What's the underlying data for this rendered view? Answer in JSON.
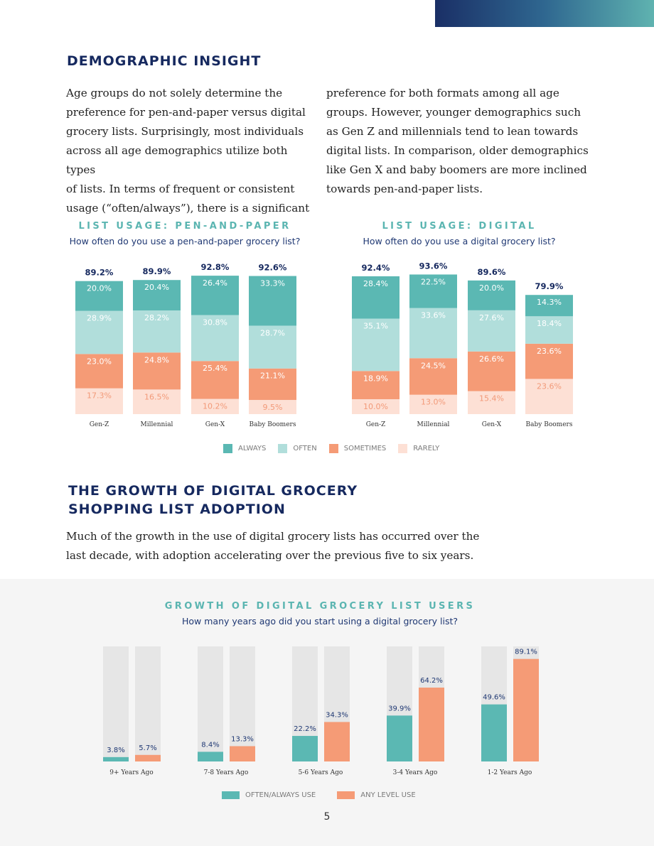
{
  "section1": {
    "title": "DEMOGRAPHIC INSIGHT",
    "col1": [
      "Age groups do not solely determine the",
      "preference for pen-and-paper versus digital",
      "grocery lists. Surprisingly, most individuals",
      "across all age demographics utilize both types",
      "of lists. In terms of frequent or consistent",
      "usage (“often/always”), there is a significant"
    ],
    "col2": [
      "preference for both formats among all age",
      "groups. However, younger demographics such",
      "as Gen Z and millennials tend to lean towards",
      "digital lists. In comparison, older demographics",
      "like Gen X and baby boomers are more inclined",
      "towards pen-and-paper lists."
    ]
  },
  "section2": {
    "title_line1": "THE GROWTH OF DIGITAL GROCERY",
    "title_line2": "SHOPPING LIST ADOPTION",
    "body": [
      "Much of the growth in the use of digital grocery lists has occurred over the",
      "last decade, with adoption accelerating over the previous five to six years."
    ]
  },
  "colors": {
    "always": "#5bb8b3",
    "often": "#b1dedb",
    "sometimes": "#f59b76",
    "rarely": "#fde0d5",
    "total_label": "#16295f",
    "growth_bg": "#e6e6e6"
  },
  "legend1": {
    "always": "ALWAYS",
    "often": "OFTEN",
    "sometimes": "SOMETIMES",
    "rarely": "RARELY"
  },
  "legend2": {
    "often_always": "OFTEN/ALWAYS USE",
    "any_level": "ANY LEVEL USE"
  },
  "page_number": "5",
  "chart_data": [
    {
      "type": "bar",
      "stacked": true,
      "title": "LIST USAGE: PEN-AND-PAPER",
      "subtitle": "How often do you use a pen-and-paper grocery list?",
      "categories": [
        "Gen-Z",
        "Millennial",
        "Gen-X",
        "Baby Boomers"
      ],
      "totals": [
        "89.2%",
        "89.9%",
        "92.8%",
        "92.6%"
      ],
      "series": [
        {
          "name": "RARELY",
          "values": [
            17.3,
            16.5,
            10.2,
            9.5
          ],
          "labels": [
            "17.3%",
            "16.5%",
            "10.2%",
            "9.5%"
          ]
        },
        {
          "name": "SOMETIMES",
          "values": [
            23.0,
            24.8,
            25.4,
            21.1
          ],
          "labels": [
            "23.0%",
            "24.8%",
            "25.4%",
            "21.1%"
          ]
        },
        {
          "name": "OFTEN",
          "values": [
            28.9,
            28.2,
            30.8,
            28.7
          ],
          "labels": [
            "28.9%",
            "28.2%",
            "30.8%",
            "28.7%"
          ]
        },
        {
          "name": "ALWAYS",
          "values": [
            20.0,
            20.4,
            26.4,
            33.3
          ],
          "labels": [
            "20.0%",
            "20.4%",
            "26.4%",
            "33.3%"
          ]
        }
      ]
    },
    {
      "type": "bar",
      "stacked": true,
      "title": "LIST USAGE: DIGITAL",
      "subtitle": "How often do you use a digital grocery list?",
      "categories": [
        "Gen-Z",
        "Millennial",
        "Gen-X",
        "Baby Boomers"
      ],
      "totals": [
        "92.4%",
        "93.6%",
        "89.6%",
        "79.9%"
      ],
      "series": [
        {
          "name": "RARELY",
          "values": [
            10.0,
            13.0,
            15.4,
            23.6
          ],
          "labels": [
            "10.0%",
            "13.0%",
            "15.4%",
            "23.6%"
          ]
        },
        {
          "name": "SOMETIMES",
          "values": [
            18.9,
            24.5,
            26.6,
            23.6
          ],
          "labels": [
            "18.9%",
            "24.5%",
            "26.6%",
            "23.6%"
          ]
        },
        {
          "name": "OFTEN",
          "values": [
            35.1,
            33.6,
            27.6,
            18.4
          ],
          "labels": [
            "35.1%",
            "33.6%",
            "27.6%",
            "18.4%"
          ]
        },
        {
          "name": "ALWAYS",
          "values": [
            28.4,
            22.5,
            20.0,
            14.3
          ],
          "labels": [
            "28.4%",
            "22.5%",
            "20.0%",
            "14.3%"
          ]
        }
      ]
    },
    {
      "type": "bar",
      "title": "GROWTH OF DIGITAL GROCERY LIST USERS",
      "subtitle": "How many years ago did you start using a digital grocery list?",
      "categories": [
        "9+ Years Ago",
        "7-8 Years Ago",
        "5-6 Years Ago",
        "3-4 Years Ago",
        "1-2 Years Ago"
      ],
      "ylim": [
        0,
        100
      ],
      "series": [
        {
          "name": "OFTEN/ALWAYS USE",
          "values": [
            3.8,
            8.4,
            22.2,
            39.9,
            49.6
          ],
          "labels": [
            "3.8%",
            "8.4%",
            "22.2%",
            "39.9%",
            "49.6%"
          ]
        },
        {
          "name": "ANY LEVEL USE",
          "values": [
            5.7,
            13.3,
            34.3,
            64.2,
            89.1
          ],
          "labels": [
            "5.7%",
            "13.3%",
            "34.3%",
            "64.2%",
            "89.1%"
          ]
        }
      ]
    }
  ]
}
